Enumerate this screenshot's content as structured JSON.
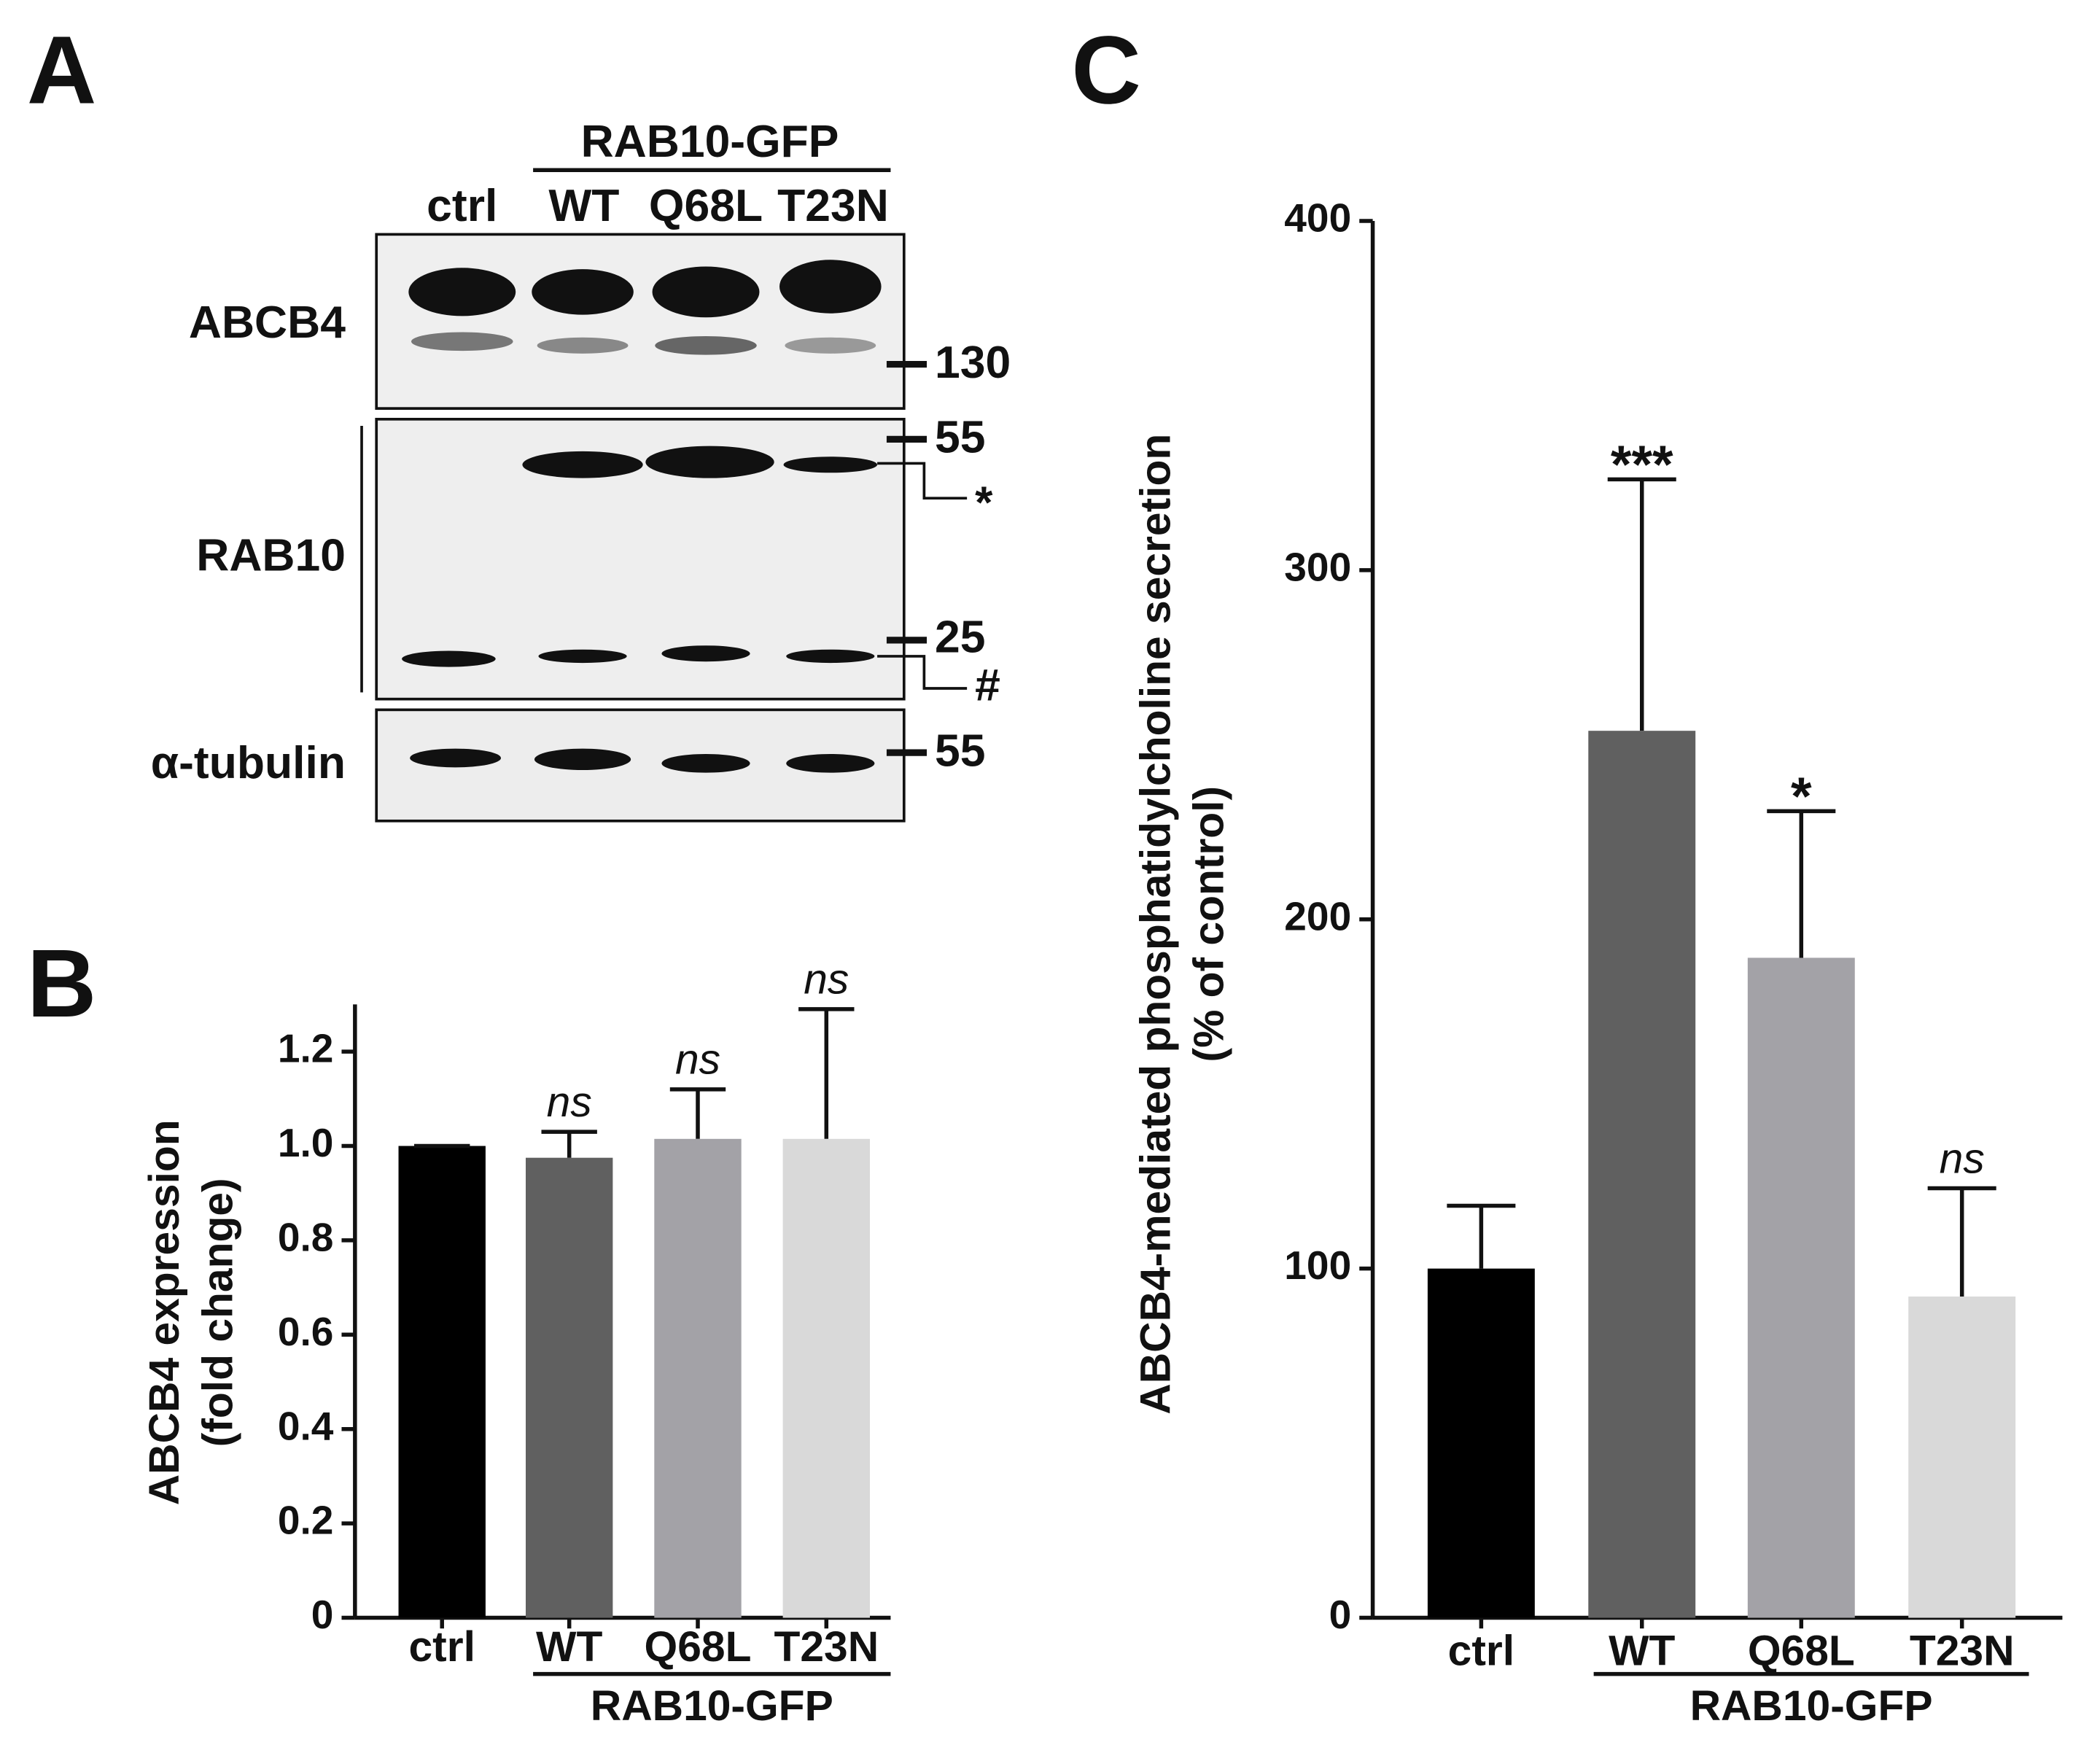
{
  "panel_labels": [
    "A",
    "B",
    "C"
  ],
  "blot": {
    "group_label": "RAB10-GFP",
    "lanes": [
      "ctrl",
      "WT",
      "Q68L",
      "T23N"
    ],
    "rows": [
      "ABCB4",
      "RAB10",
      "α-tubulin"
    ],
    "markers": [
      "130",
      "55",
      "25",
      "55"
    ],
    "band_notes": [
      "*",
      "#"
    ]
  },
  "chart_data": [
    {
      "type": "bar",
      "y_label": [
        "ABCB4 expression",
        "(fold change)"
      ],
      "categories": [
        "ctrl",
        "WT",
        "Q68L",
        "T23N"
      ],
      "group_label": "RAB10-GFP",
      "values": [
        1.0,
        0.975,
        1.015,
        1.015
      ],
      "errors": [
        0,
        0.055,
        0.105,
        0.275
      ],
      "annotations": [
        null,
        "ns",
        "ns",
        "ns"
      ],
      "colors": [
        "#000000",
        "#606060",
        "#a3a2a7",
        "#d9d9d9"
      ],
      "ylim": [
        0,
        1.3
      ],
      "yticks": [
        0,
        0.2,
        0.4,
        0.6,
        0.8,
        {
          "value": 1,
          "label": "1.0"
        },
        1.2
      ]
    },
    {
      "type": "bar",
      "y_label": [
        "ABCB4-mediated phosphatidylcholine secretion",
        "(% of control)"
      ],
      "categories": [
        "ctrl",
        "WT",
        "Q68L",
        "T23N"
      ],
      "group_label": "RAB10-GFP",
      "values": [
        100,
        254,
        189,
        92
      ],
      "errors": [
        18,
        72,
        42,
        31
      ],
      "annotations": [
        null,
        "***",
        "*",
        "ns"
      ],
      "colors": [
        "#000000",
        "#606060",
        "#a3a2a7",
        "#d9d9d9"
      ],
      "ylim": [
        0,
        400
      ],
      "yticks": [
        0,
        100,
        200,
        300,
        400
      ]
    }
  ]
}
